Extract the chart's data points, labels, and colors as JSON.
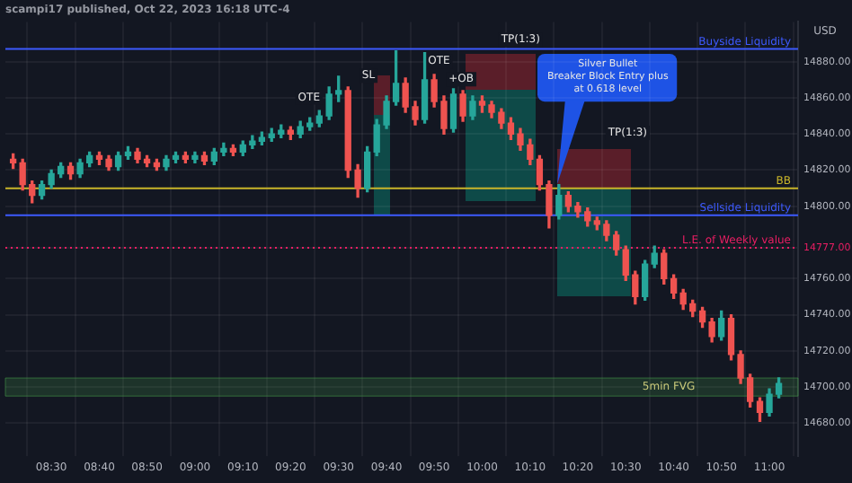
{
  "chart_data": {
    "type": "candlestick",
    "title": "scampi17 published, Oct 22, 2023 16:18 UTC-4",
    "ylabel": "USD",
    "x": [
      8.367,
      8.4,
      8.433,
      8.467,
      8.5,
      8.533,
      8.567,
      8.6,
      8.633,
      8.667,
      8.7,
      8.733,
      8.767,
      8.8,
      8.833,
      8.867,
      8.9,
      8.933,
      8.967,
      9,
      9.033,
      9.067,
      9.1,
      9.133,
      9.167,
      9.2,
      9.233,
      9.267,
      9.3,
      9.333,
      9.367,
      9.4,
      9.433,
      9.467,
      9.5,
      9.533,
      9.567,
      9.6,
      9.633,
      9.667,
      9.7,
      9.733,
      9.767,
      9.8,
      9.833,
      9.867,
      9.9,
      9.933,
      9.967,
      10,
      10.033,
      10.067,
      10.1,
      10.133,
      10.167,
      10.2,
      10.233,
      10.267,
      10.3,
      10.333,
      10.367,
      10.4,
      10.433,
      10.467,
      10.5,
      10.533,
      10.567,
      10.6,
      10.633,
      10.667,
      10.7,
      10.733,
      10.767,
      10.8,
      10.833,
      10.867,
      10.9,
      10.933,
      10.967,
      11,
      11.033
    ],
    "ohlc": [
      [
        14826,
        14829,
        14821,
        14824
      ],
      [
        14824,
        14826,
        14809,
        14812
      ],
      [
        14812,
        14814,
        14802,
        14806
      ],
      [
        14806,
        14814,
        14804,
        14812
      ],
      [
        14812,
        14820,
        14810,
        14818
      ],
      [
        14818,
        14824,
        14816,
        14822
      ],
      [
        14822,
        14824,
        14815,
        14818
      ],
      [
        14818,
        14826,
        14816,
        14824
      ],
      [
        14824,
        14830,
        14822,
        14828
      ],
      [
        14828,
        14830,
        14823,
        14826
      ],
      [
        14826,
        14828,
        14820,
        14822
      ],
      [
        14822,
        14830,
        14820,
        14828
      ],
      [
        14828,
        14833,
        14826,
        14830
      ],
      [
        14830,
        14832,
        14824,
        14826
      ],
      [
        14826,
        14828,
        14822,
        14824
      ],
      [
        14824,
        14826,
        14820,
        14822
      ],
      [
        14822,
        14828,
        14820,
        14826
      ],
      [
        14826,
        14830,
        14824,
        14828
      ],
      [
        14828,
        14830,
        14824,
        14826
      ],
      [
        14826,
        14830,
        14824,
        14828
      ],
      [
        14828,
        14830,
        14823,
        14825
      ],
      [
        14825,
        14832,
        14823,
        14830
      ],
      [
        14830,
        14835,
        14828,
        14832
      ],
      [
        14832,
        14834,
        14828,
        14830
      ],
      [
        14830,
        14836,
        14828,
        14834
      ],
      [
        14834,
        14839,
        14832,
        14836
      ],
      [
        14836,
        14841,
        14834,
        14838
      ],
      [
        14838,
        14843,
        14836,
        14840
      ],
      [
        14840,
        14845,
        14838,
        14842
      ],
      [
        14842,
        14844,
        14837,
        14840
      ],
      [
        14840,
        14847,
        14838,
        14844
      ],
      [
        14844,
        14849,
        14842,
        14846
      ],
      [
        14846,
        14853,
        14844,
        14850
      ],
      [
        14850,
        14866,
        14848,
        14862
      ],
      [
        14862,
        14872,
        14858,
        14864
      ],
      [
        14864,
        14866,
        14816,
        14820
      ],
      [
        14820,
        14823,
        14805,
        14810
      ],
      [
        14810,
        14833,
        14808,
        14830
      ],
      [
        14830,
        14848,
        14828,
        14845
      ],
      [
        14845,
        14861,
        14843,
        14858
      ],
      [
        14858,
        14886,
        14856,
        14868
      ],
      [
        14868,
        14871,
        14852,
        14855
      ],
      [
        14855,
        14858,
        14845,
        14848
      ],
      [
        14848,
        14885,
        14846,
        14870
      ],
      [
        14870,
        14873,
        14855,
        14858
      ],
      [
        14858,
        14861,
        14840,
        14843
      ],
      [
        14843,
        14865,
        14841,
        14862
      ],
      [
        14862,
        14864,
        14847,
        14850
      ],
      [
        14850,
        14861,
        14848,
        14858
      ],
      [
        14858,
        14861,
        14852,
        14856
      ],
      [
        14856,
        14858,
        14849,
        14852
      ],
      [
        14852,
        14854,
        14843,
        14846
      ],
      [
        14846,
        14849,
        14837,
        14840
      ],
      [
        14840,
        14843,
        14831,
        14834
      ],
      [
        14834,
        14837,
        14823,
        14826
      ],
      [
        14826,
        14828,
        14809,
        14812
      ],
      [
        14812,
        14814,
        14788,
        14795
      ],
      [
        14795,
        14812,
        14793,
        14806
      ],
      [
        14806,
        14808,
        14797,
        14800
      ],
      [
        14800,
        14802,
        14794,
        14797
      ],
      [
        14797,
        14799,
        14789,
        14792
      ],
      [
        14792,
        14794,
        14787,
        14790
      ],
      [
        14790,
        14792,
        14781,
        14784
      ],
      [
        14784,
        14786,
        14773,
        14776
      ],
      [
        14776,
        14778,
        14759,
        14762
      ],
      [
        14762,
        14764,
        14746,
        14750
      ],
      [
        14750,
        14770,
        14748,
        14768
      ],
      [
        14768,
        14778,
        14766,
        14774
      ],
      [
        14774,
        14776,
        14757,
        14760
      ],
      [
        14760,
        14762,
        14749,
        14752
      ],
      [
        14752,
        14754,
        14743,
        14746
      ],
      [
        14746,
        14748,
        14739,
        14742
      ],
      [
        14742,
        14744,
        14733,
        14736
      ],
      [
        14736,
        14738,
        14725,
        14728
      ],
      [
        14728,
        14742,
        14726,
        14738
      ],
      [
        14738,
        14740,
        14715,
        14718
      ],
      [
        14718,
        14720,
        14702,
        14705
      ],
      [
        14705,
        14707,
        14689,
        14692
      ],
      [
        14692,
        14694,
        14681,
        14686
      ],
      [
        14686,
        14699,
        14684,
        14696
      ],
      [
        14696,
        14705,
        14694,
        14702
      ]
    ],
    "xlim": [
      8.34,
      11.1
    ],
    "xticks": [
      {
        "value": 8.5,
        "label": "08:30"
      },
      {
        "value": 8.667,
        "label": "08:40"
      },
      {
        "value": 8.833,
        "label": "08:50"
      },
      {
        "value": 9,
        "label": "09:00"
      },
      {
        "value": 9.167,
        "label": "09:10"
      },
      {
        "value": 9.333,
        "label": "09:20"
      },
      {
        "value": 9.5,
        "label": "09:30"
      },
      {
        "value": 9.667,
        "label": "09:40"
      },
      {
        "value": 9.833,
        "label": "09:50"
      },
      {
        "value": 10,
        "label": "10:00"
      },
      {
        "value": 10.167,
        "label": "10:10"
      },
      {
        "value": 10.333,
        "label": "10:20"
      },
      {
        "value": 10.5,
        "label": "10:30"
      },
      {
        "value": 10.667,
        "label": "10:40"
      },
      {
        "value": 10.833,
        "label": "10:50"
      },
      {
        "value": 11,
        "label": "11:00"
      }
    ],
    "ylim": [
      14662,
      14902
    ],
    "yticks": [
      {
        "value": 14680,
        "label": "14680.00"
      },
      {
        "value": 14700,
        "label": "14700.00"
      },
      {
        "value": 14720,
        "label": "14720.00"
      },
      {
        "value": 14740,
        "label": "14740.00"
      },
      {
        "value": 14760,
        "label": "14760.00"
      },
      {
        "value": 14777,
        "label": "14777.00"
      },
      {
        "value": 14800,
        "label": "14800.00"
      },
      {
        "value": 14820,
        "label": "14820.00"
      },
      {
        "value": 14840,
        "label": "14840.00"
      },
      {
        "value": 14860,
        "label": "14860.00"
      },
      {
        "value": 14880,
        "label": "14880.00"
      }
    ],
    "grid": true,
    "ref_lines": [
      {
        "axis": "y",
        "value": 14887,
        "label": "Buyside Liquidity",
        "color": "#3d5afe"
      },
      {
        "axis": "y",
        "value": 14795,
        "label": "Sellside Liquidity",
        "color": "#3d5afe"
      },
      {
        "axis": "y",
        "value": 14810,
        "label": "BB",
        "color": "#c9b52a"
      },
      {
        "axis": "y",
        "value": 14777,
        "label": "L.E. of Weekly value",
        "color": "#e91e63",
        "line_style": "dotted"
      }
    ],
    "bands": [
      {
        "axis": "y",
        "from": 14695,
        "to": 14705,
        "label": "5min FVG",
        "color": "#4caf50"
      }
    ],
    "annotations": [
      "SL",
      "OTE",
      "OTE",
      "+OB",
      "TP(1:3)",
      "TP(1:3)",
      "Silver Bullet\nBreaker Block Entry plus\nat 0.618 level"
    ]
  }
}
